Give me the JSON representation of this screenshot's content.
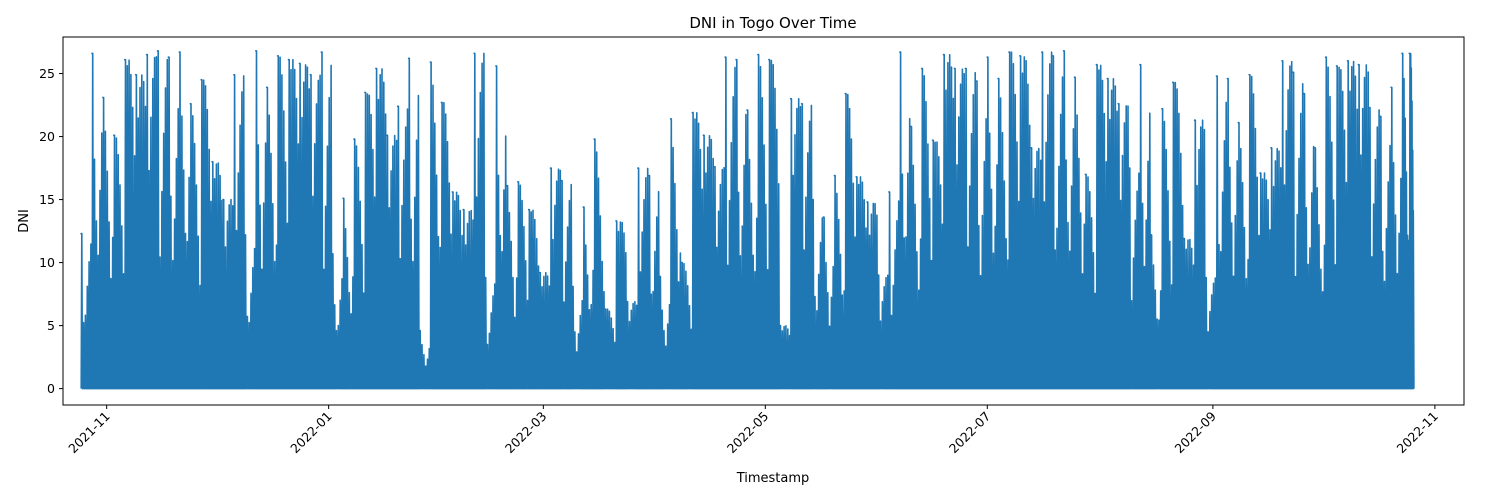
{
  "chart_data": {
    "type": "line",
    "title": "DNI in Togo Over Time",
    "xlabel": "Timestamp",
    "ylabel": "DNI",
    "x_range": [
      "2021-10-20",
      "2022-11-09"
    ],
    "ylim": [
      -1.3,
      27.9
    ],
    "x_ticks": [
      "2021-11",
      "2022-01",
      "2022-03",
      "2022-05",
      "2022-07",
      "2022-09",
      "2022-11"
    ],
    "y_ticks": [
      0,
      5,
      10,
      15,
      20,
      25
    ],
    "grid": false,
    "legend": "none",
    "series": [
      {
        "color": "#1f77b4",
        "x": [
          "2021-10-25",
          "2021-10-28",
          "2021-10-31",
          "2021-11-03",
          "2021-11-06",
          "2021-11-09",
          "2021-11-12",
          "2021-11-15",
          "2021-11-18",
          "2021-11-21",
          "2021-11-24",
          "2021-11-27",
          "2021-11-30",
          "2021-12-03",
          "2021-12-06",
          "2021-12-09",
          "2021-12-12",
          "2021-12-15",
          "2021-12-18",
          "2021-12-21",
          "2021-12-24",
          "2021-12-27",
          "2021-12-30",
          "2022-01-02",
          "2022-01-05",
          "2022-01-08",
          "2022-01-11",
          "2022-01-14",
          "2022-01-17",
          "2022-01-20",
          "2022-01-23",
          "2022-01-26",
          "2022-01-29",
          "2022-02-01",
          "2022-02-04",
          "2022-02-07",
          "2022-02-10",
          "2022-02-13",
          "2022-02-16",
          "2022-02-19",
          "2022-02-22",
          "2022-02-25",
          "2022-02-28",
          "2022-03-03",
          "2022-03-06",
          "2022-03-09",
          "2022-03-12",
          "2022-03-15",
          "2022-03-18",
          "2022-03-21",
          "2022-03-24",
          "2022-03-27",
          "2022-03-30",
          "2022-04-02",
          "2022-04-05",
          "2022-04-08",
          "2022-04-11",
          "2022-04-14",
          "2022-04-17",
          "2022-04-20",
          "2022-04-23",
          "2022-04-26",
          "2022-04-29",
          "2022-05-02",
          "2022-05-05",
          "2022-05-08",
          "2022-05-11",
          "2022-05-14",
          "2022-05-17",
          "2022-05-20",
          "2022-05-23",
          "2022-05-26",
          "2022-05-29",
          "2022-06-01",
          "2022-06-04",
          "2022-06-07",
          "2022-06-10",
          "2022-06-13",
          "2022-06-16",
          "2022-06-19",
          "2022-06-22",
          "2022-06-25",
          "2022-06-28",
          "2022-07-01",
          "2022-07-04",
          "2022-07-07",
          "2022-07-10",
          "2022-07-13",
          "2022-07-16",
          "2022-07-19",
          "2022-07-22",
          "2022-07-25",
          "2022-07-28",
          "2022-07-31",
          "2022-08-03",
          "2022-08-06",
          "2022-08-09",
          "2022-08-12",
          "2022-08-15",
          "2022-08-18",
          "2022-08-21",
          "2022-08-24",
          "2022-08-27",
          "2022-08-30",
          "2022-09-02",
          "2022-09-05",
          "2022-09-08",
          "2022-09-11",
          "2022-09-14",
          "2022-09-17",
          "2022-09-20",
          "2022-09-23",
          "2022-09-26",
          "2022-09-29",
          "2022-10-02",
          "2022-10-05",
          "2022-10-08",
          "2022-10-11",
          "2022-10-14",
          "2022-10-17",
          "2022-10-20",
          "2022-10-23",
          "2022-10-25"
        ],
        "y": [
          12.3,
          26.6,
          23.1,
          20.1,
          26.1,
          24.9,
          26.5,
          26.8,
          26.3,
          26.7,
          22.6,
          24.5,
          18.0,
          15.0,
          24.9,
          12.2,
          26.8,
          23.9,
          26.4,
          26.1,
          25.8,
          24.9,
          26.7,
          10.7,
          15.1,
          19.8,
          23.5,
          25.4,
          20.1,
          22.4,
          26.2,
          4.6,
          25.9,
          22.7,
          15.6,
          14.2,
          26.6,
          8.8,
          25.6,
          16.1,
          16.4,
          14.2,
          9.2,
          17.5,
          16.5,
          8.1,
          14.4,
          19.8,
          6.3,
          13.3,
          6.9,
          17.5,
          16.9,
          8.9,
          21.4,
          10.0,
          21.9,
          20.1,
          17.6,
          26.3,
          26.1,
          22.1,
          26.5,
          26.1,
          5.0,
          23.0,
          22.6,
          15.0,
          13.6,
          16.9,
          23.4,
          16.8,
          14.8,
          9.0,
          15.6,
          26.7,
          20.8,
          25.4,
          19.7,
          26.5,
          25.4,
          25.4,
          24.4,
          26.3,
          24.6,
          26.7,
          26.4,
          19.1,
          26.7,
          26.4,
          26.8,
          24.7,
          17.0,
          25.7,
          24.6,
          22.6,
          17.5,
          25.7,
          12.2,
          22.2,
          24.3,
          11.9,
          21.3,
          8.8,
          24.8,
          24.6,
          21.1,
          24.9,
          17.1,
          19.1,
          26.0,
          25.1,
          23.4,
          19.1,
          26.3,
          25.6,
          26.0,
          25.7,
          22.3,
          21.6,
          23.9,
          26.6,
          26.6
        ]
      }
    ]
  }
}
